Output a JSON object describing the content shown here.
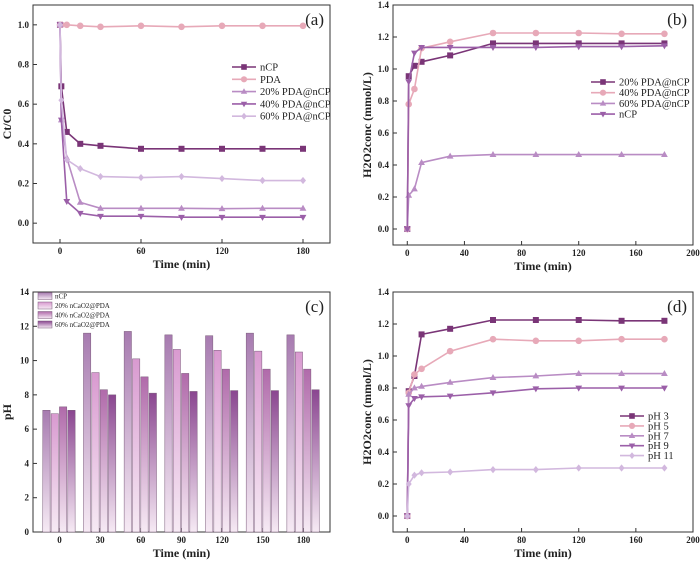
{
  "chart_data": [
    {
      "id": "a",
      "type": "line",
      "panel_label": "(a)",
      "xlabel": "Time (min)",
      "ylabel": "Ct/C0",
      "xlim": [
        -20,
        200
      ],
      "ylim": [
        -0.1,
        1.1
      ],
      "xticks": [
        0,
        60,
        120,
        180
      ],
      "yticks": [
        0.0,
        0.2,
        0.4,
        0.6,
        0.8,
        1.0
      ],
      "ytick_format": 1,
      "legend_position": "right-middle",
      "x": [
        0,
        1,
        5,
        15,
        30,
        60,
        90,
        120,
        150,
        180
      ],
      "series": [
        {
          "name": "nCP",
          "marker": "square",
          "color": "#7a3577",
          "values": [
            1.0,
            0.69,
            0.46,
            0.4,
            0.39,
            0.375,
            0.375,
            0.375,
            0.375,
            0.375
          ]
        },
        {
          "name": "PDA",
          "marker": "circle",
          "color": "#e7a9b8",
          "values": [
            1.0,
            1.0,
            1.0,
            0.995,
            0.99,
            0.995,
            0.99,
            0.995,
            0.995,
            0.995
          ]
        },
        {
          "name": "20% PDA@nCP",
          "marker": "triangle-up",
          "color": "#b98cc4",
          "values": [
            1.0,
            0.52,
            0.33,
            0.105,
            0.075,
            0.075,
            0.075,
            0.073,
            0.075,
            0.075
          ]
        },
        {
          "name": "40% PDA@nCP",
          "marker": "triangle-down",
          "color": "#9b5fa8",
          "values": [
            1.0,
            0.52,
            0.11,
            0.05,
            0.035,
            0.035,
            0.03,
            0.03,
            0.03,
            0.03
          ]
        },
        {
          "name": "60% PDA@nCP",
          "marker": "diamond",
          "color": "#d2b8de",
          "values": [
            1.0,
            0.62,
            0.32,
            0.275,
            0.235,
            0.23,
            0.235,
            0.225,
            0.215,
            0.215
          ]
        }
      ]
    },
    {
      "id": "b",
      "type": "line",
      "panel_label": "(b)",
      "xlabel": "Time (min)",
      "ylabel": "H2O2conc (mmol/L)",
      "xlim": [
        -10,
        200
      ],
      "ylim": [
        -0.1,
        1.4
      ],
      "xticks": [
        0,
        40,
        80,
        120,
        160,
        200
      ],
      "yticks": [
        0.0,
        0.2,
        0.4,
        0.6,
        0.8,
        1.0,
        1.2,
        1.4
      ],
      "ytick_format": 1,
      "legend_position": "right-middle",
      "x": [
        0,
        1,
        5,
        10,
        30,
        60,
        90,
        120,
        150,
        180
      ],
      "series": [
        {
          "name": "20% PDA@nCP",
          "marker": "square",
          "color": "#7a3577",
          "values": [
            0,
            0.955,
            1.02,
            1.045,
            1.085,
            1.16,
            1.16,
            1.16,
            1.16,
            1.16
          ]
        },
        {
          "name": "40% PDA@nCP",
          "marker": "circle",
          "color": "#e7a9b8",
          "values": [
            0,
            0.78,
            0.875,
            1.13,
            1.17,
            1.225,
            1.225,
            1.225,
            1.22,
            1.22
          ]
        },
        {
          "name": "60% PDA@nCP",
          "marker": "triangle-up",
          "color": "#b98cc4",
          "values": [
            0,
            0.21,
            0.25,
            0.415,
            0.455,
            0.465,
            0.465,
            0.465,
            0.465,
            0.465
          ]
        },
        {
          "name": "nCP",
          "marker": "triangle-down",
          "color": "#9b5fa8",
          "values": [
            0,
            0.92,
            1.1,
            1.135,
            1.135,
            1.135,
            1.135,
            1.14,
            1.14,
            1.145
          ]
        }
      ]
    },
    {
      "id": "c",
      "type": "bar",
      "panel_label": "(c)",
      "xlabel": "Time (min)",
      "ylabel": "pH",
      "ylim": [
        0,
        14
      ],
      "yticks": [
        0,
        2,
        4,
        6,
        8,
        10,
        12,
        14
      ],
      "ytick_format": 0,
      "legend_position": "top-left",
      "categories": [
        "0",
        "30",
        "60",
        "90",
        "120",
        "150",
        "180"
      ],
      "series": [
        {
          "name": "nCP",
          "color": "#a77bb0",
          "values": [
            7.1,
            11.6,
            11.7,
            11.5,
            11.45,
            11.6,
            11.5
          ]
        },
        {
          "name": "20% nCaO2@PDA",
          "color": "#d99ad0",
          "values": [
            6.9,
            9.3,
            10.1,
            10.65,
            10.6,
            10.55,
            10.5
          ]
        },
        {
          "name": "40% nCaO2@PDA",
          "color": "#b06aaa",
          "values": [
            7.3,
            8.3,
            9.05,
            9.25,
            9.5,
            9.5,
            9.5
          ]
        },
        {
          "name": "60% nCaO2@PDA",
          "color": "#8a4690",
          "values": [
            7.1,
            8.0,
            8.1,
            8.2,
            8.25,
            8.25,
            8.3
          ]
        }
      ]
    },
    {
      "id": "d",
      "type": "line",
      "panel_label": "(d)",
      "xlabel": "Time (min)",
      "ylabel": "H2O2conc (mmol/L)",
      "xlim": [
        -10,
        200
      ],
      "ylim": [
        -0.1,
        1.4
      ],
      "xticks": [
        0,
        40,
        80,
        120,
        160,
        200
      ],
      "yticks": [
        0.0,
        0.2,
        0.4,
        0.6,
        0.8,
        1.0,
        1.2,
        1.4
      ],
      "ytick_format": 1,
      "legend_position": "right-middle",
      "x": [
        0,
        1,
        5,
        10,
        30,
        60,
        90,
        120,
        150,
        180
      ],
      "series": [
        {
          "name": "pH 3",
          "marker": "square",
          "color": "#7a3577",
          "values": [
            0,
            0.78,
            0.875,
            1.135,
            1.17,
            1.225,
            1.225,
            1.225,
            1.22,
            1.22
          ]
        },
        {
          "name": "pH 5",
          "marker": "circle",
          "color": "#e7a9b8",
          "values": [
            0,
            0.77,
            0.885,
            0.92,
            1.03,
            1.105,
            1.095,
            1.095,
            1.105,
            1.105
          ]
        },
        {
          "name": "pH 7",
          "marker": "triangle-up",
          "color": "#b98cc4",
          "values": [
            0,
            0.76,
            0.8,
            0.81,
            0.835,
            0.865,
            0.875,
            0.89,
            0.89,
            0.89
          ]
        },
        {
          "name": "pH 9",
          "marker": "triangle-down",
          "color": "#9b5fa8",
          "values": [
            0,
            0.69,
            0.735,
            0.745,
            0.75,
            0.77,
            0.795,
            0.8,
            0.8,
            0.8
          ]
        },
        {
          "name": "pH 11",
          "marker": "diamond",
          "color": "#d2b8de",
          "values": [
            0,
            0.2,
            0.255,
            0.27,
            0.275,
            0.29,
            0.29,
            0.3,
            0.3,
            0.3
          ]
        }
      ]
    }
  ]
}
